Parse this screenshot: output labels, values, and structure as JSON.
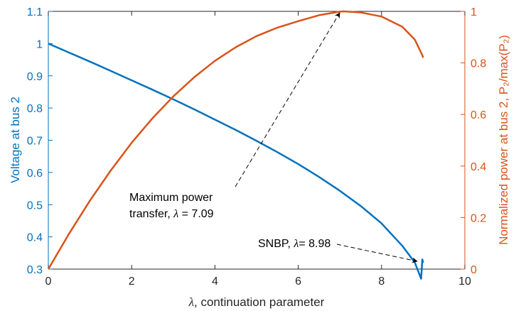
{
  "chart_data": {
    "type": "line",
    "xlabel_symbol": "λ",
    "xlabel_rest": ", continuation parameter",
    "ylabel_left": "Voltage at bus 2",
    "ylabel_right": "Normalized power at bus 2, P₂/max(P₂)",
    "xlim": [
      0,
      10
    ],
    "ylim_left": [
      0.3,
      1.1
    ],
    "ylim_right": [
      0,
      1
    ],
    "xticks": [
      "0",
      "2",
      "4",
      "6",
      "8",
      "10"
    ],
    "yticks_left": [
      "0.3",
      "0.4",
      "0.5",
      "0.6",
      "0.7",
      "0.8",
      "0.9",
      "1",
      "1.1"
    ],
    "yticks_right": [
      "0",
      "0.2",
      "0.4",
      "0.6",
      "0.8",
      "1"
    ],
    "grid": false,
    "colors": {
      "left": "#0072BD",
      "right": "#D95319"
    },
    "series": [
      {
        "axis": "left",
        "x": [
          0,
          0.5,
          1,
          1.5,
          2,
          2.5,
          3,
          3.5,
          4,
          4.5,
          5,
          5.5,
          6,
          6.5,
          7,
          7.5,
          8,
          8.5,
          8.8,
          8.95,
          8.98,
          9.0
        ],
        "y": [
          1.0,
          0.972,
          0.944,
          0.915,
          0.886,
          0.857,
          0.827,
          0.796,
          0.764,
          0.732,
          0.698,
          0.663,
          0.626,
          0.586,
          0.543,
          0.496,
          0.442,
          0.372,
          0.32,
          0.27,
          0.33,
          0.32
        ]
      },
      {
        "axis": "right",
        "x": [
          0,
          0.5,
          1,
          1.5,
          2,
          2.5,
          3,
          3.5,
          4,
          4.5,
          5,
          5.5,
          6,
          6.5,
          7,
          7.09,
          7.5,
          8,
          8.5,
          8.8,
          8.98,
          9.0
        ],
        "y": [
          0.0,
          0.138,
          0.266,
          0.383,
          0.49,
          0.585,
          0.67,
          0.744,
          0.808,
          0.861,
          0.904,
          0.937,
          0.962,
          0.985,
          0.999,
          1.0,
          0.996,
          0.98,
          0.94,
          0.89,
          0.83,
          0.82
        ]
      }
    ],
    "annotations": [
      {
        "line1": "Maximum power",
        "line2_pre": "transfer, ",
        "line2_sym": "λ",
        "line2_post": " = 7.09"
      },
      {
        "pre": "SNBP, ",
        "sym": "λ",
        "post": "= 8.98"
      }
    ]
  }
}
